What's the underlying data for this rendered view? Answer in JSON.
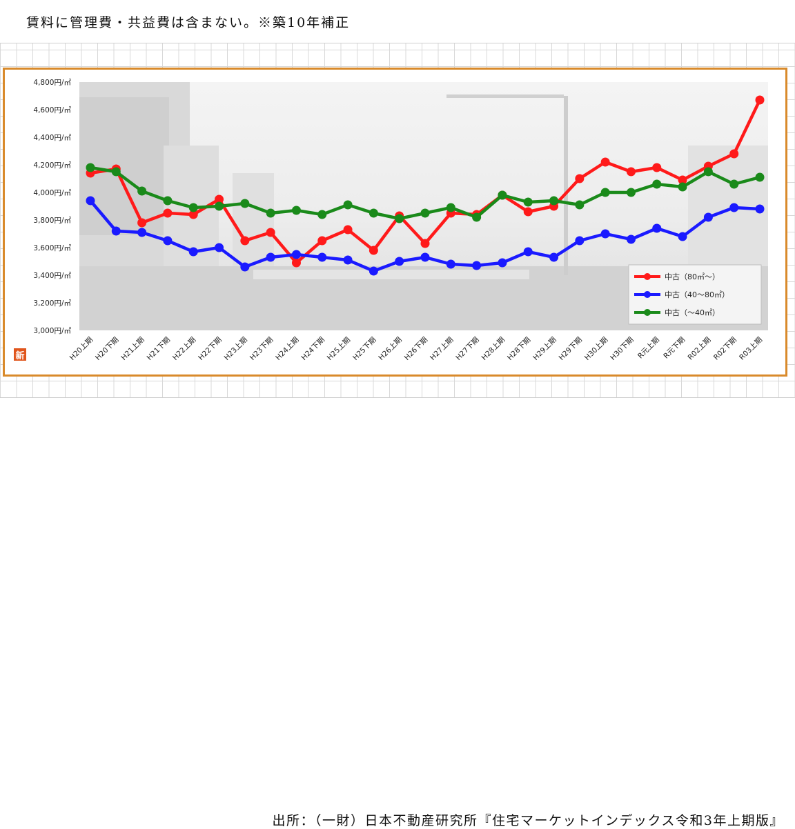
{
  "header": {
    "note": "賃料に管理費・共益費は含まない。※築10年補正"
  },
  "footer": {
    "source": "出所：（一財）日本不動産研究所『住宅マーケットインデックス令和3年上期版』"
  },
  "badge": {
    "label": "新"
  },
  "chart_data": {
    "type": "line",
    "title": "",
    "xlabel": "",
    "ylabel": "",
    "ylim": [
      3000,
      4800
    ],
    "yticks": [
      3000,
      3200,
      3400,
      3600,
      3800,
      4000,
      4200,
      4400,
      4600,
      4800
    ],
    "ytick_labels": [
      "3,000円/㎡",
      "3,200円/㎡",
      "3,400円/㎡",
      "3,600円/㎡",
      "3,800円/㎡",
      "4,000円/㎡",
      "4,200円/㎡",
      "4,400円/㎡",
      "4,600円/㎡",
      "4,800円/㎡"
    ],
    "grid": false,
    "legend_position": "bottom-right",
    "categories": [
      "H20上期",
      "H20下期",
      "H21上期",
      "H21下期",
      "H22上期",
      "H22下期",
      "H23上期",
      "H23下期",
      "H24上期",
      "H24下期",
      "H25上期",
      "H25下期",
      "H26上期",
      "H26下期",
      "H27上期",
      "H27下期",
      "H28上期",
      "H28下期",
      "H29上期",
      "H29下期",
      "H30上期",
      "H30下期",
      "R元上期",
      "R元下期",
      "R02上期",
      "R02下期",
      "R03上期"
    ],
    "series": [
      {
        "name": "中古（80㎡～）",
        "color": "#ff1a1a",
        "values": [
          4140,
          4170,
          3780,
          3850,
          3840,
          3950,
          3650,
          3710,
          3490,
          3650,
          3730,
          3580,
          3830,
          3630,
          3850,
          3840,
          3980,
          3860,
          3900,
          4100,
          4220,
          4150,
          4180,
          4090,
          4190,
          4280,
          4670
        ]
      },
      {
        "name": "中古（40～80㎡）",
        "color": "#1a1aff",
        "values": [
          3940,
          3720,
          3710,
          3650,
          3570,
          3600,
          3460,
          3530,
          3550,
          3530,
          3510,
          3430,
          3500,
          3530,
          3480,
          3470,
          3490,
          3570,
          3530,
          3650,
          3700,
          3660,
          3740,
          3680,
          3820,
          3890,
          3880
        ]
      },
      {
        "name": "中古（～40㎡）",
        "color": "#1a8a1a",
        "values": [
          4180,
          4150,
          4010,
          3940,
          3890,
          3900,
          3920,
          3850,
          3870,
          3840,
          3910,
          3850,
          3810,
          3850,
          3890,
          3820,
          3980,
          3930,
          3940,
          3910,
          4000,
          4000,
          4060,
          4040,
          4150,
          4060,
          4110
        ]
      }
    ]
  }
}
